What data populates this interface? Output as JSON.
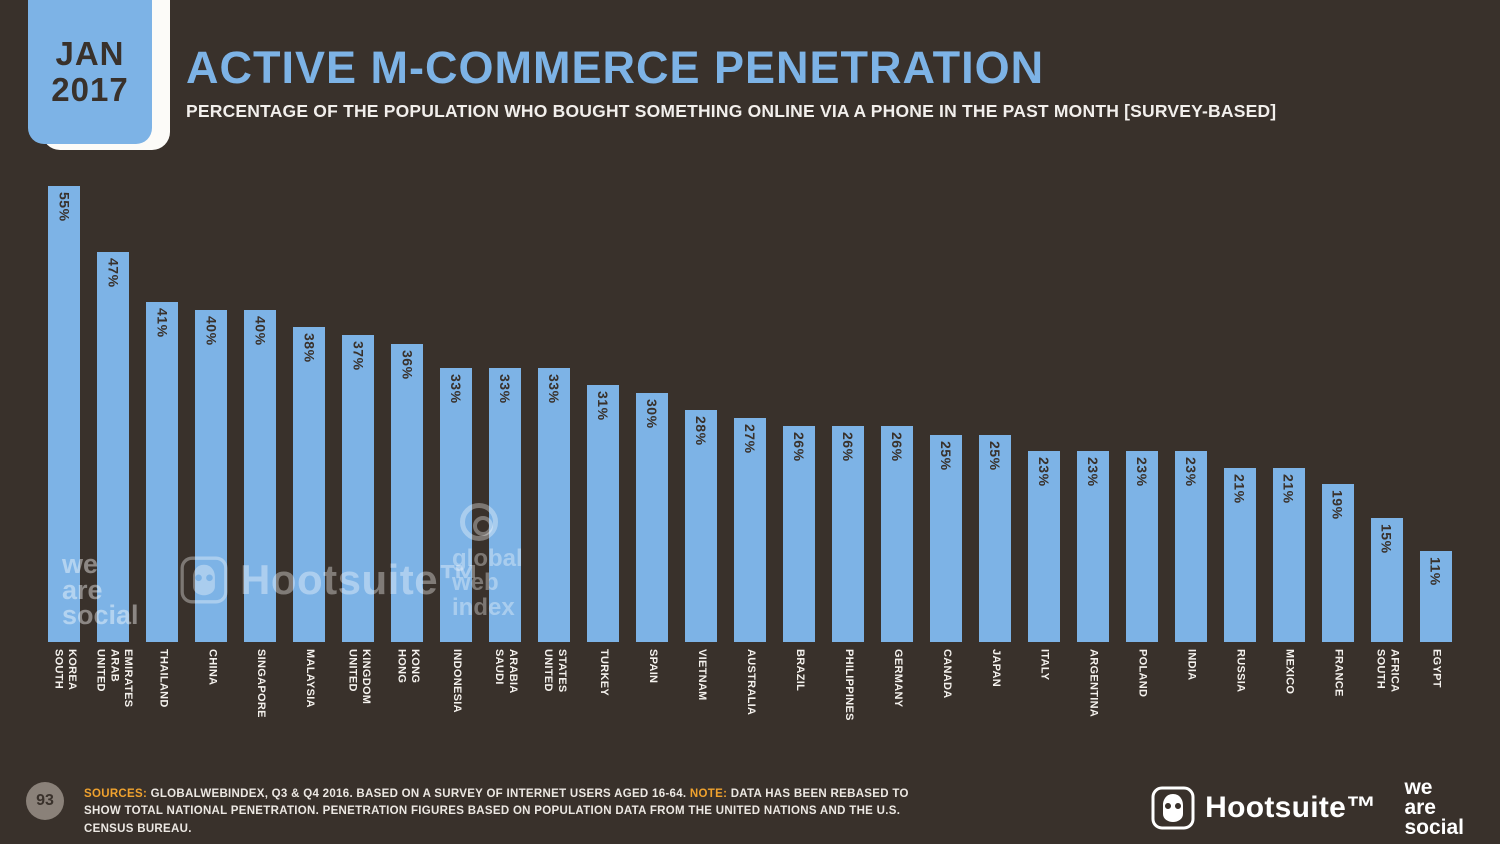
{
  "badge": {
    "month": "JAN",
    "year": "2017"
  },
  "chart_data": {
    "type": "bar",
    "title": "ACTIVE M-COMMERCE PENETRATION",
    "subtitle": "PERCENTAGE OF THE POPULATION WHO BOUGHT SOMETHING ONLINE VIA A PHONE IN THE PAST MONTH [SURVEY-BASED]",
    "categories": [
      "SOUTH KOREA",
      "UNITED ARAB EMIRATES",
      "THAILAND",
      "CHINA",
      "SINGAPORE",
      "MALAYSIA",
      "UNITED KINGDOM",
      "HONG KONG",
      "INDONESIA",
      "SAUDI ARABIA",
      "UNITED STATES",
      "TURKEY",
      "SPAIN",
      "VIETNAM",
      "AUSTRALIA",
      "BRAZIL",
      "PHILIPPINES",
      "GERMANY",
      "CANADA",
      "JAPAN",
      "ITALY",
      "ARGENTINA",
      "POLAND",
      "INDIA",
      "RUSSIA",
      "MEXICO",
      "FRANCE",
      "SOUTH AFRICA",
      "EGYPT"
    ],
    "values": [
      55,
      47,
      41,
      40,
      40,
      38,
      37,
      36,
      33,
      33,
      33,
      31,
      30,
      28,
      27,
      26,
      26,
      26,
      25,
      25,
      23,
      23,
      23,
      23,
      21,
      21,
      19,
      15,
      11
    ],
    "value_suffix": "%",
    "xlabel": "",
    "ylabel": "",
    "ylim": [
      0,
      55
    ],
    "grid": false,
    "legend": false,
    "bar_color": "#7DB3E6",
    "value_label_color": "#39312B",
    "category_label_color": "#F5F2EE"
  },
  "watermarks": {
    "wearesocial": {
      "l1": "we",
      "l2": "are",
      "l3": "social"
    },
    "hootsuite": "Hootsuite™",
    "gwi": {
      "l1": "global",
      "l2": "web",
      "l3": "index"
    }
  },
  "footer": {
    "page_number": "93",
    "sources_label": "SOURCES:",
    "sources_text": " GLOBALWEBINDEX, Q3 & Q4 2016. BASED ON A SURVEY OF INTERNET USERS AGED 16-64. ",
    "note_label": "NOTE:",
    "note_text": " DATA HAS BEEN REBASED TO SHOW TOTAL NATIONAL PENETRATION. PENETRATION FIGURES BASED ON POPULATION DATA FROM THE UNITED NATIONS AND THE U.S. CENSUS BUREAU.",
    "hootsuite_logo_text": "Hootsuite™",
    "wearesocial_logo": {
      "l1": "we",
      "l2": "are",
      "l3": "social"
    }
  },
  "colors": {
    "background": "#39312B",
    "bar": "#7DB3E6",
    "title": "#7DB3E6",
    "accent_orange": "#F0A22E",
    "badge_text": "#39312B",
    "page_circle": "#8A8179"
  }
}
